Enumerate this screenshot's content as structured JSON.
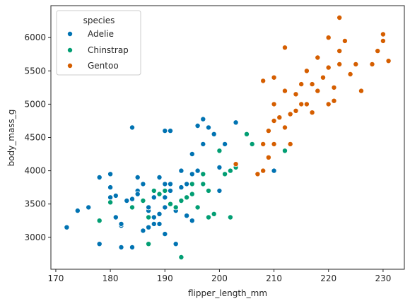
{
  "chart_data": {
    "type": "scatter",
    "xlabel": "flipper_length_mm",
    "ylabel": "body_mass_g",
    "xlim": [
      169.1,
      233.9
    ],
    "ylim": [
      2520,
      6480
    ],
    "xticks": [
      170,
      180,
      190,
      200,
      210,
      220,
      230
    ],
    "yticks": [
      3000,
      3500,
      4000,
      4500,
      5000,
      5500,
      6000
    ],
    "grid": false,
    "legend": {
      "title": "species",
      "placement": "top-left"
    },
    "series": [
      {
        "name": "Adelie",
        "color": "#0173b2",
        "points": [
          [
            172,
            3150
          ],
          [
            174,
            3400
          ],
          [
            176,
            3450
          ],
          [
            178,
            2900
          ],
          [
            178,
            3900
          ],
          [
            180,
            3600
          ],
          [
            180,
            3950
          ],
          [
            180,
            3750
          ],
          [
            181,
            3300
          ],
          [
            181,
            3625
          ],
          [
            182,
            3175
          ],
          [
            182,
            3200
          ],
          [
            182,
            2850
          ],
          [
            183,
            3550
          ],
          [
            184,
            3450
          ],
          [
            184,
            4650
          ],
          [
            184,
            2850
          ],
          [
            184,
            3575
          ],
          [
            185,
            3700
          ],
          [
            185,
            3900
          ],
          [
            185,
            3650
          ],
          [
            186,
            3800
          ],
          [
            186,
            3100
          ],
          [
            186,
            3550
          ],
          [
            187,
            3150
          ],
          [
            187,
            3400
          ],
          [
            187,
            3450
          ],
          [
            187,
            2900
          ],
          [
            188,
            3300
          ],
          [
            188,
            3600
          ],
          [
            188,
            3200
          ],
          [
            189,
            3900
          ],
          [
            189,
            3200
          ],
          [
            189,
            3350
          ],
          [
            190,
            3450
          ],
          [
            190,
            4600
          ],
          [
            190,
            3800
          ],
          [
            190,
            3600
          ],
          [
            190,
            3050
          ],
          [
            191,
            3800
          ],
          [
            191,
            4600
          ],
          [
            191,
            3700
          ],
          [
            192,
            2900
          ],
          [
            192,
            3400
          ],
          [
            193,
            3750
          ],
          [
            193,
            4000
          ],
          [
            194,
            3800
          ],
          [
            194,
            3325
          ],
          [
            195,
            3250
          ],
          [
            195,
            4250
          ],
          [
            195,
            3950
          ],
          [
            196,
            4675
          ],
          [
            196,
            4000
          ],
          [
            197,
            4400
          ],
          [
            197,
            4775
          ],
          [
            198,
            4650
          ],
          [
            199,
            4550
          ],
          [
            200,
            3700
          ],
          [
            200,
            4050
          ],
          [
            201,
            4400
          ],
          [
            203,
            4725
          ],
          [
            210,
            4000
          ]
        ]
      },
      {
        "name": "Chinstrap",
        "color": "#029e73",
        "points": [
          [
            178,
            3250
          ],
          [
            180,
            3525
          ],
          [
            184,
            3450
          ],
          [
            186,
            3550
          ],
          [
            187,
            2900
          ],
          [
            187,
            3300
          ],
          [
            188,
            3700
          ],
          [
            189,
            3650
          ],
          [
            190,
            3700
          ],
          [
            191,
            3500
          ],
          [
            192,
            3450
          ],
          [
            193,
            2700
          ],
          [
            193,
            3550
          ],
          [
            194,
            3600
          ],
          [
            195,
            3650
          ],
          [
            195,
            3800
          ],
          [
            196,
            3450
          ],
          [
            197,
            3950
          ],
          [
            197,
            3800
          ],
          [
            198,
            3300
          ],
          [
            198,
            3700
          ],
          [
            199,
            3350
          ],
          [
            200,
            4300
          ],
          [
            201,
            3950
          ],
          [
            202,
            3300
          ],
          [
            202,
            4000
          ],
          [
            203,
            4050
          ],
          [
            205,
            4550
          ],
          [
            206,
            4400
          ],
          [
            212,
            4300
          ]
        ]
      },
      {
        "name": "Gentoo",
        "color": "#d55e00",
        "points": [
          [
            203,
            4100
          ],
          [
            207,
            3950
          ],
          [
            208,
            4000
          ],
          [
            208,
            4400
          ],
          [
            209,
            4200
          ],
          [
            209,
            4600
          ],
          [
            210,
            4400
          ],
          [
            210,
            4750
          ],
          [
            210,
            5000
          ],
          [
            211,
            4800
          ],
          [
            212,
            4650
          ],
          [
            212,
            5200
          ],
          [
            213,
            4850
          ],
          [
            213,
            4400
          ],
          [
            214,
            4900
          ],
          [
            214,
            5150
          ],
          [
            215,
            5000
          ],
          [
            215,
            5300
          ],
          [
            216,
            5000
          ],
          [
            216,
            5500
          ],
          [
            217,
            4875
          ],
          [
            217,
            5300
          ],
          [
            218,
            5200
          ],
          [
            218,
            5700
          ],
          [
            219,
            5400
          ],
          [
            220,
            5000
          ],
          [
            220,
            5550
          ],
          [
            221,
            5050
          ],
          [
            221,
            5250
          ],
          [
            222,
            5600
          ],
          [
            222,
            5800
          ],
          [
            223,
            5950
          ],
          [
            224,
            5450
          ],
          [
            225,
            5600
          ],
          [
            226,
            5200
          ],
          [
            228,
            5600
          ],
          [
            229,
            5800
          ],
          [
            230,
            5950
          ],
          [
            230,
            6050
          ],
          [
            231,
            5650
          ],
          [
            222,
            6300
          ],
          [
            220,
            6000
          ],
          [
            212,
            5850
          ],
          [
            210,
            5400
          ],
          [
            208,
            5350
          ]
        ]
      }
    ]
  }
}
